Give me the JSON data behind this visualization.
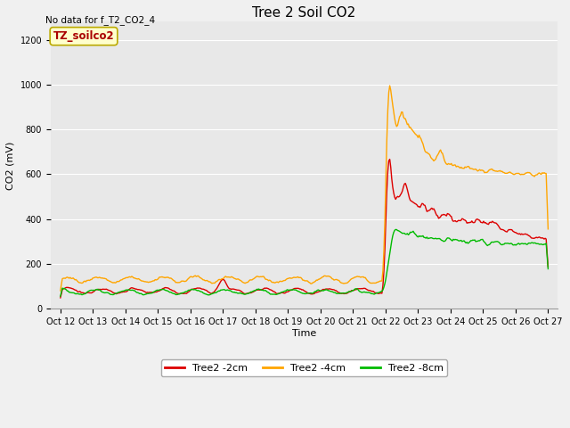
{
  "title": "Tree 2 Soil CO2",
  "no_data_text": "No data for f_T2_CO2_4",
  "ylabel": "CO2 (mV)",
  "xlabel": "Time",
  "watermark": "TZ_soilco2",
  "ylim": [
    0,
    1280
  ],
  "yticks": [
    0,
    200,
    400,
    600,
    800,
    1000,
    1200
  ],
  "xtick_labels": [
    "Oct 12",
    "Oct 13",
    "Oct 14",
    "Oct 15",
    "Oct 16",
    "Oct 17",
    "Oct 18",
    "Oct 19",
    "Oct 20",
    "Oct 21",
    "Oct 22",
    "Oct 23",
    "Oct 24",
    "Oct 25",
    "Oct 26",
    "Oct 27"
  ],
  "fig_bg_color": "#f0f0f0",
  "plot_bg_color": "#e8e8e8",
  "grid_color": "#ffffff",
  "line_colors": {
    "red": "#dd0000",
    "orange": "#ffa500",
    "green": "#00bb00"
  },
  "legend_labels": [
    "Tree2 -2cm",
    "Tree2 -4cm",
    "Tree2 -8cm"
  ],
  "title_fontsize": 11,
  "label_fontsize": 8,
  "tick_fontsize": 7,
  "watermark_facecolor": "#ffffcc",
  "watermark_edgecolor": "#bbaa00",
  "watermark_textcolor": "#aa0000"
}
